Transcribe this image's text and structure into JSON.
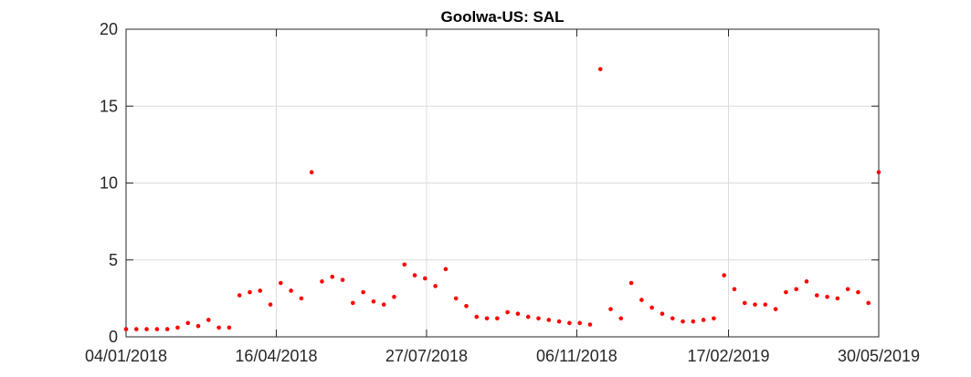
{
  "chart_data": {
    "type": "scatter",
    "title": "Goolwa-US: SAL",
    "xlabel": "",
    "ylabel": "",
    "x_axis": "date",
    "xlim": [
      "2018-01-04",
      "2019-05-30"
    ],
    "ylim": [
      0,
      20
    ],
    "x_ticks": [
      "2018-01-04",
      "2018-04-16",
      "2018-07-27",
      "2018-11-06",
      "2019-02-17",
      "2019-05-30"
    ],
    "x_tick_labels": [
      "04/01/2018",
      "16/04/2018",
      "27/07/2018",
      "06/11/2018",
      "17/02/2019",
      "30/05/2019"
    ],
    "y_ticks": [
      0,
      5,
      10,
      15,
      20
    ],
    "y_tick_labels": [
      "0",
      "5",
      "10",
      "15",
      "20"
    ],
    "grid": true,
    "marker_color": "#ff0000",
    "series": [
      {
        "x": [
          "2018-01-04",
          "2018-01-11",
          "2018-01-18",
          "2018-01-25",
          "2018-02-01",
          "2018-02-08",
          "2018-02-15",
          "2018-02-22",
          "2018-03-01",
          "2018-03-08",
          "2018-03-15",
          "2018-03-22",
          "2018-03-29",
          "2018-04-05",
          "2018-04-12",
          "2018-04-19",
          "2018-04-26",
          "2018-05-03",
          "2018-05-10",
          "2018-05-17",
          "2018-05-24",
          "2018-05-31",
          "2018-06-07",
          "2018-06-14",
          "2018-06-21",
          "2018-06-28",
          "2018-07-05",
          "2018-07-12",
          "2018-07-19",
          "2018-07-26",
          "2018-08-02",
          "2018-08-09",
          "2018-08-16",
          "2018-08-23",
          "2018-08-30",
          "2018-09-06",
          "2018-09-13",
          "2018-09-20",
          "2018-09-27",
          "2018-10-04",
          "2018-10-11",
          "2018-10-18",
          "2018-10-25",
          "2018-11-01",
          "2018-11-08",
          "2018-11-15",
          "2018-11-22",
          "2018-11-29",
          "2018-12-06",
          "2018-12-13",
          "2018-12-20",
          "2018-12-27",
          "2019-01-03",
          "2019-01-10",
          "2019-01-17",
          "2019-01-24",
          "2019-01-31",
          "2019-02-07",
          "2019-02-14",
          "2019-02-21",
          "2019-02-28",
          "2019-03-07",
          "2019-03-14",
          "2019-03-21",
          "2019-03-28",
          "2019-04-04",
          "2019-04-11",
          "2019-04-18",
          "2019-04-25",
          "2019-05-02",
          "2019-05-09",
          "2019-05-16",
          "2019-05-23",
          "2019-05-30"
        ],
        "y": [
          0.5,
          0.5,
          0.5,
          0.5,
          0.5,
          0.6,
          0.9,
          0.7,
          1.1,
          0.6,
          0.6,
          2.7,
          2.9,
          3.0,
          2.1,
          3.5,
          3.0,
          2.5,
          10.7,
          3.6,
          3.9,
          3.7,
          2.2,
          2.9,
          2.3,
          2.1,
          2.6,
          4.7,
          4.0,
          3.8,
          3.3,
          4.4,
          2.5,
          2.0,
          1.3,
          1.2,
          1.2,
          1.6,
          1.5,
          1.3,
          1.2,
          1.1,
          1.0,
          0.9,
          0.9,
          0.8,
          17.4,
          1.8,
          1.2,
          3.5,
          2.4,
          1.9,
          1.5,
          1.2,
          1.0,
          1.0,
          1.1,
          1.2,
          4.0,
          3.1,
          2.2,
          2.1,
          2.1,
          1.8,
          2.9,
          3.1,
          3.6,
          2.7,
          2.6,
          2.5,
          3.1,
          2.9,
          2.2,
          10.7
        ]
      }
    ]
  }
}
